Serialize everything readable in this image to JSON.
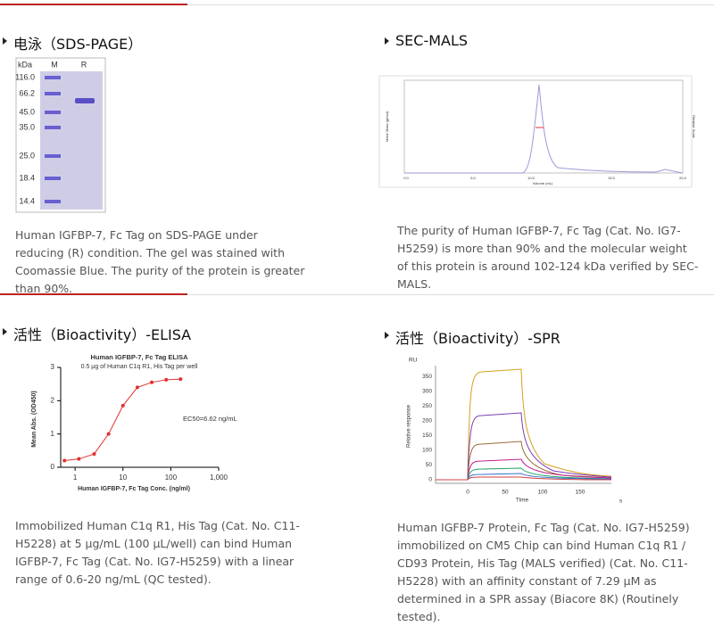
{
  "sections": [
    {
      "title": "电泳（SDS-PAGE）",
      "figure": {
        "lane_header": [
          "kDa",
          "M",
          "R"
        ],
        "markers": [
          "116.0",
          "66.2",
          "45.0",
          "35.0",
          "25.0",
          "18.4",
          "14.4"
        ]
      },
      "description": "Human IGFBP-7, Fc Tag on SDS-PAGE under reducing (R) condition. The gel was stained with Coomassie Blue. The purity of the protein is greater than 90%."
    },
    {
      "title": "SEC-MALS",
      "figure": {
        "y_label": "Molar Mass (g/mol)",
        "y2_label": "Relative Scale",
        "x_label": "Volume (mL)",
        "xticks": [
          "0.0",
          "5.0",
          "10.0",
          "15.0",
          "20.0"
        ]
      },
      "description": "The purity of Human IGFBP-7, Fc Tag (Cat. No. IG7-H5259) is more than 90% and the molecular weight of this protein is around 102-124 kDa verified by SEC-MALS."
    },
    {
      "title": "活性（Bioactivity）-ELISA",
      "figure": {
        "title": "Human IGFBP-7, Fc Tag ELISA",
        "subtitle": "0.5 μg of Human C1q R1, His Tag per well",
        "x_label": "Human IGFBP-7, Fc Tag Conc. (ng/ml)",
        "y_label": "Mean Abs. (OD450)",
        "annotation": "EC50=6.62 ng/mL",
        "xlim": [
          0.5,
          1000
        ],
        "ylim": [
          0,
          3
        ],
        "log_x": true,
        "xticks": [
          1,
          10,
          100,
          {
            "value": 1000,
            "label": "1,000"
          }
        ],
        "yticks": [
          0,
          1,
          2,
          3
        ],
        "x": [
          0.6,
          1.2,
          2.5,
          5,
          10,
          20,
          40,
          80,
          160
        ],
        "values": [
          0.2,
          0.25,
          0.4,
          1.0,
          1.85,
          2.4,
          2.55,
          2.63,
          2.65
        ],
        "color": "#e03030"
      },
      "description": "Immobilized Human C1q R1, His Tag (Cat. No. C11-H5228) at 5 μg/mL (100 μL/well) can bind Human IGFBP-7, Fc Tag (Cat. No. IG7-H5259) with a linear range of 0.6-20 ng/mL (QC tested)."
    },
    {
      "title": "活性（Bioactivity）-SPR",
      "figure": {
        "y_unit": "RU",
        "y_label": "Relative response",
        "x_label": "Time",
        "x_unit": "s",
        "yticks": [
          0,
          50,
          100,
          150,
          200,
          250,
          300,
          350
        ],
        "xticks": [
          0,
          50,
          100,
          150
        ]
      },
      "description": "Human IGFBP-7 Protein, Fc Tag (Cat. No. IG7-H5259) immobilized on CM5 Chip can bind Human C1q R1 / CD93 Protein, His Tag (MALS verified) (Cat. No. C11-H5228) with an affinity constant of 7.29 μM as determined in a SPR assay (Biacore 8K) (Routinely tested)."
    }
  ]
}
